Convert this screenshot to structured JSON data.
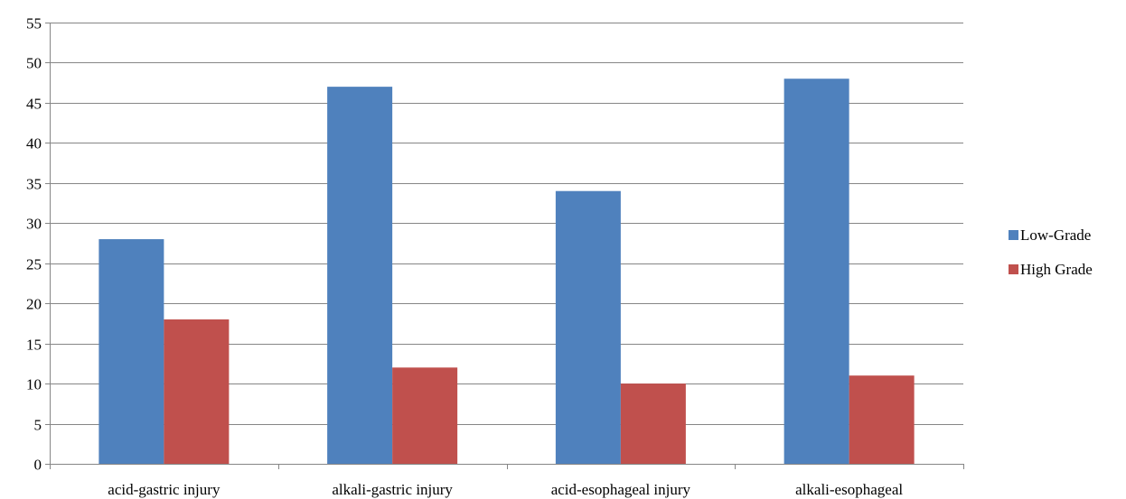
{
  "chart_data": {
    "type": "bar",
    "title": "",
    "xlabel": "",
    "ylabel": "",
    "categories": [
      "acid-gastric injury",
      "alkali-gastric injury",
      "acid-esophageal injury",
      "alkali-esophageal"
    ],
    "series": [
      {
        "name": "Low-Grade",
        "color": "#4f81bd",
        "values": [
          28,
          47,
          34,
          48
        ]
      },
      {
        "name": "High Grade",
        "color": "#c0504d",
        "values": [
          18,
          12,
          10,
          11
        ]
      }
    ],
    "ylim": [
      0,
      55
    ],
    "yticks": [
      0,
      5,
      10,
      15,
      20,
      25,
      30,
      35,
      40,
      45,
      50,
      55
    ],
    "grid": true,
    "legend": "right",
    "colors": {
      "gridline": "#868686",
      "axis": "#868686",
      "text": "#000000"
    }
  }
}
